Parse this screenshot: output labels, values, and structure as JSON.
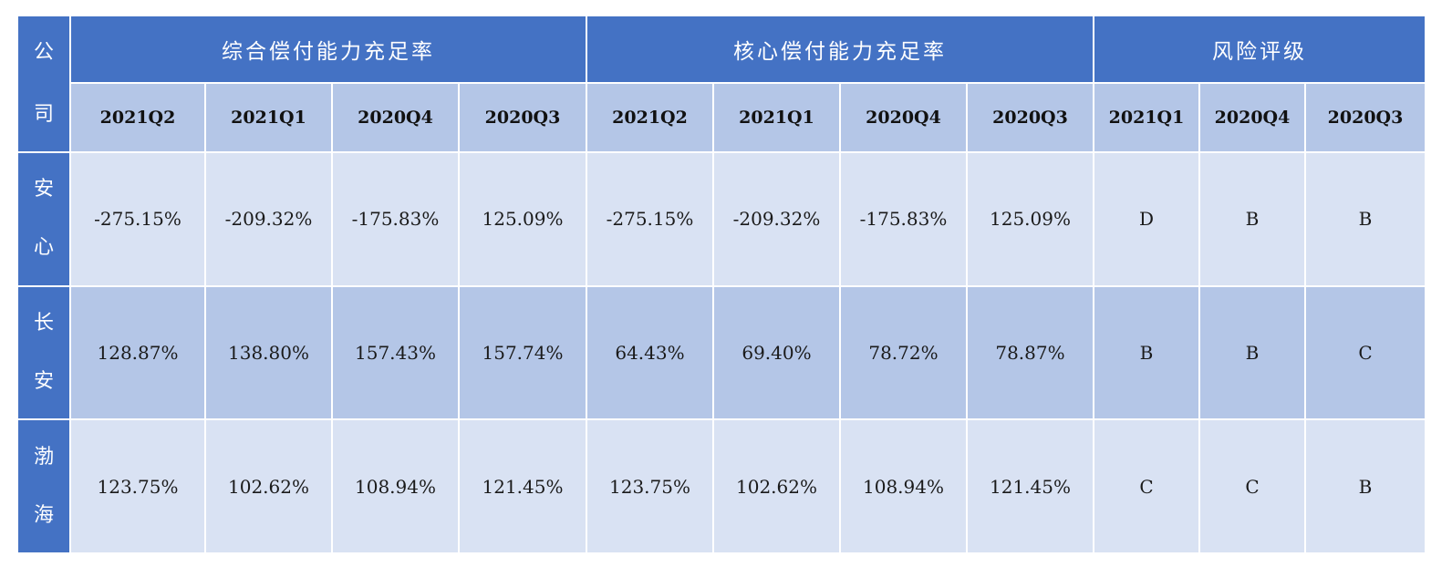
{
  "headers": {
    "company": "公司",
    "group1": "综合偿付能力充足率",
    "group2": "核心偿付能力充足率",
    "group3": "风险评级",
    "group1_periods": [
      "2021Q2",
      "2021Q1",
      "2020Q4",
      "2020Q3"
    ],
    "group2_periods": [
      "2021Q2",
      "2021Q1",
      "2020Q4",
      "2020Q3"
    ],
    "group3_periods": [
      "2021Q1",
      "2020Q4",
      "2020Q3"
    ]
  },
  "rows": [
    {
      "company": "安心",
      "comprehensive": [
        "-275.15%",
        "-209.32%",
        "-175.83%",
        "125.09%"
      ],
      "core": [
        "-275.15%",
        "-209.32%",
        "-175.83%",
        "125.09%"
      ],
      "rating": [
        "D",
        "B",
        "B"
      ]
    },
    {
      "company": "长安",
      "comprehensive": [
        "128.87%",
        "138.80%",
        "157.43%",
        "157.74%"
      ],
      "core": [
        "64.43%",
        "69.40%",
        "78.72%",
        "78.87%"
      ],
      "rating": [
        "B",
        "B",
        "C"
      ]
    },
    {
      "company": "渤海",
      "comprehensive": [
        "123.75%",
        "102.62%",
        "108.94%",
        "121.45%"
      ],
      "core": [
        "123.75%",
        "102.62%",
        "108.94%",
        "121.45%"
      ],
      "rating": [
        "C",
        "C",
        "B"
      ]
    }
  ],
  "colors": {
    "header_dark": "#4472c4",
    "header_light": "#b4c6e7",
    "row_light": "#d9e2f3",
    "row_dark": "#b4c6e7"
  }
}
